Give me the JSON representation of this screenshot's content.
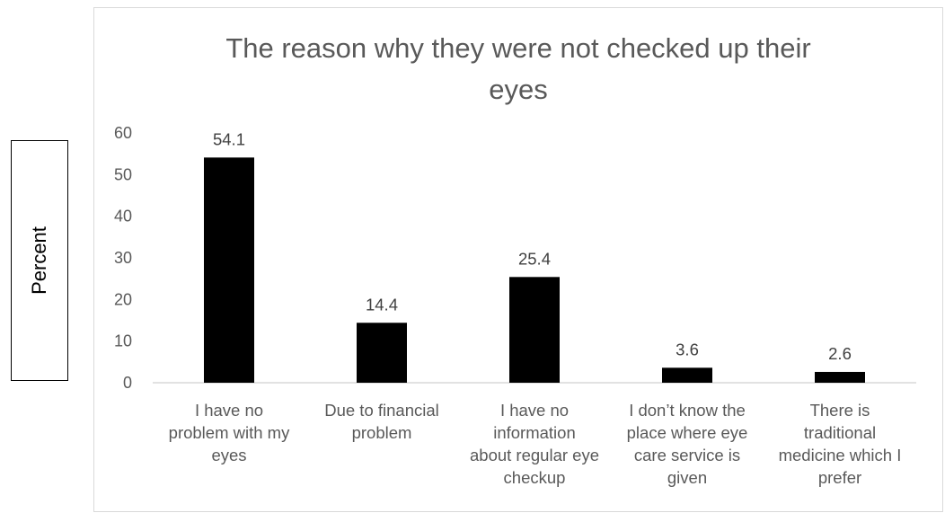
{
  "chart_data": {
    "type": "bar",
    "title": "The reason why they were not checked up their eyes",
    "title_lines": [
      "The reason why they were not checked up their",
      "eyes"
    ],
    "ylabel": "Percent",
    "xlabel": "",
    "categories": [
      "I have no problem with my eyes",
      "Due to financial problem",
      "I have no information about regular eye checkup",
      "I don’t know the place where eye care service is given",
      "There is traditional medicine which I prefer"
    ],
    "category_lines": [
      [
        "I have no",
        "problem with my",
        "eyes"
      ],
      [
        "Due to financial",
        "problem"
      ],
      [
        "I have no",
        "information",
        "about regular eye",
        "checkup"
      ],
      [
        "I don’t know the",
        "place where eye",
        "care service is",
        "given"
      ],
      [
        "There is",
        "traditional",
        "medicine which I",
        "prefer"
      ]
    ],
    "values": [
      54.1,
      14.4,
      25.4,
      3.6,
      2.6
    ],
    "data_labels": [
      "54.1",
      "14.4",
      "25.4",
      "3.6",
      "2.6"
    ],
    "ylim": [
      0,
      60
    ],
    "yticks": [
      "0",
      "10",
      "20",
      "30",
      "40",
      "50",
      "60"
    ],
    "grid": false,
    "legend": "none",
    "bar_color": "#000000"
  }
}
